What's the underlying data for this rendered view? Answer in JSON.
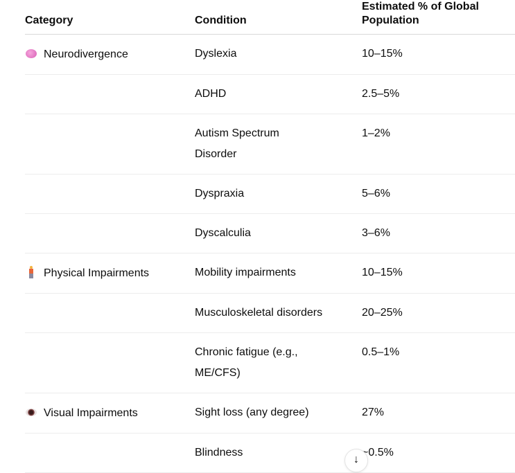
{
  "table": {
    "headers": [
      "Category",
      "Condition",
      "Estimated % of Global Population"
    ],
    "rows": [
      {
        "category": "Neurodivergence",
        "icon": "brain-icon",
        "condition": "Dyslexia",
        "estimate": "10–15%"
      },
      {
        "category": "",
        "condition": "ADHD",
        "estimate": "2.5–5%"
      },
      {
        "category": "",
        "condition": "Autism Spectrum Disorder",
        "estimate": "1–2%"
      },
      {
        "category": "",
        "condition": "Dyspraxia",
        "estimate": "5–6%"
      },
      {
        "category": "",
        "condition": "Dyscalculia",
        "estimate": "3–6%"
      },
      {
        "category": "Physical Impairments",
        "icon": "person-standing-icon",
        "condition": "Mobility impairments",
        "estimate": "10–15%"
      },
      {
        "category": "",
        "condition": "Musculoskeletal disorders",
        "estimate": "20–25%"
      },
      {
        "category": "",
        "condition": "Chronic fatigue (e.g., ME/CFS)",
        "estimate": "0.5–1%"
      },
      {
        "category": "Visual Impairments",
        "icon": "eye-icon",
        "condition": "Sight loss (any degree)",
        "estimate": "27%"
      },
      {
        "category": "",
        "condition": "Blindness",
        "estimate": "~0.5%"
      }
    ]
  },
  "scroll_button": {
    "icon": "arrow-down-icon",
    "glyph": "↓"
  }
}
